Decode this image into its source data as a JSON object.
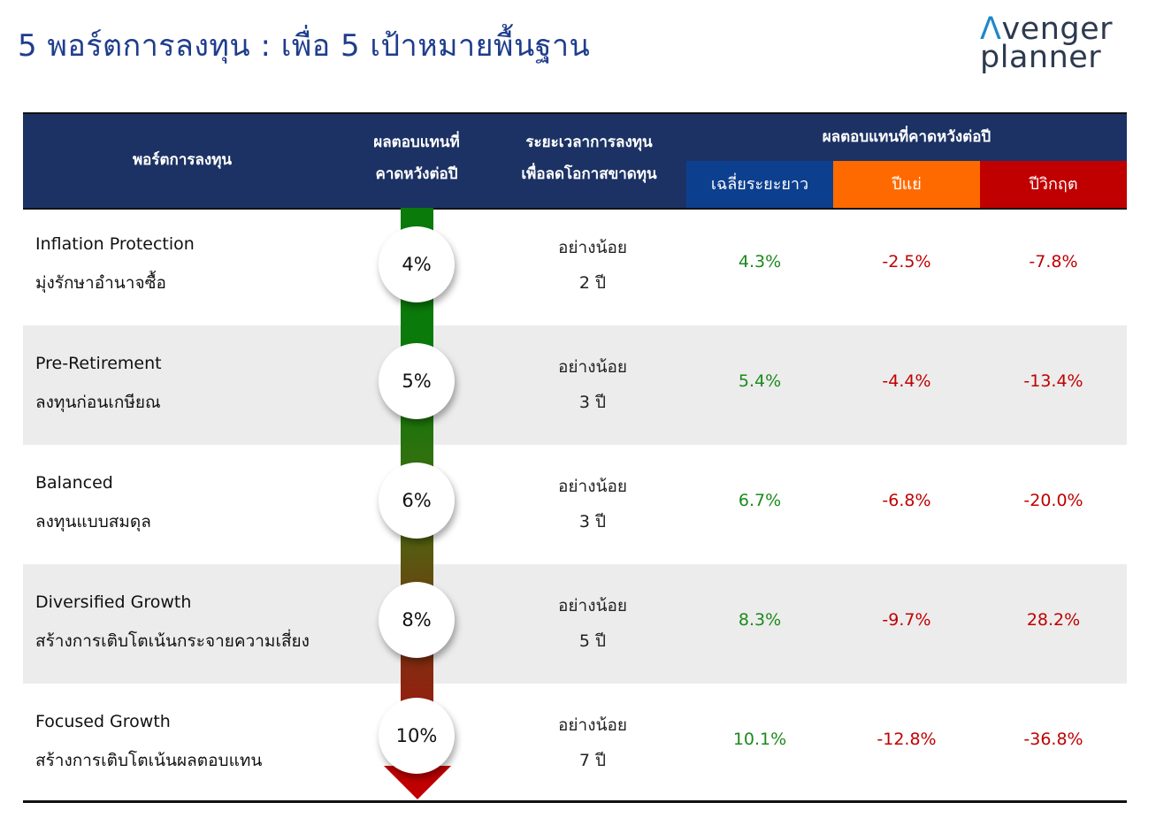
{
  "title": "5 พอร์ตการลงทุน : เพื่อ 5 เป้าหมายพื้นฐาน",
  "logo": {
    "line1": "venger",
    "line1_a": "Λ",
    "line2": "planner"
  },
  "header": {
    "portfolio": "พอร์ตการลงทุน",
    "expected_line1": "ผลตอบแทนที่",
    "expected_line2": "คาดหวังต่อปี",
    "period_line1": "ระยะเวลาการลงทุน",
    "period_line2": "เพื่อลดโอกาสขาดทุน",
    "group": "ผลตอบแทนที่คาดหวังต่อปี",
    "avg": "เฉลี่ยระยะยาว",
    "bad": "ปีแย่",
    "crisis": "ปีวิกฤต"
  },
  "colors": {
    "header_bg": "#1c3264",
    "avg_bg": "#0d3f8f",
    "bad_bg": "#ff6a00",
    "crisis_bg": "#c00000",
    "positive": "#1b8a1b",
    "negative": "#c00000"
  },
  "rows": [
    {
      "name_en": "Inflation Protection",
      "name_th": "มุ่งรักษาอำนาจซื้อ",
      "expected": "4%",
      "period_1": "อย่างน้อย",
      "period_2": "2 ปี",
      "avg": "4.3%",
      "bad": "-2.5%",
      "crisis": "-7.8%"
    },
    {
      "name_en": "Pre-Retirement",
      "name_th": "ลงทุนก่อนเกษียณ",
      "expected": "5%",
      "period_1": "อย่างน้อย",
      "period_2": "3 ปี",
      "avg": "5.4%",
      "bad": "-4.4%",
      "crisis": "-13.4%"
    },
    {
      "name_en": "Balanced",
      "name_th": "ลงทุนแบบสมดุล",
      "expected": "6%",
      "period_1": "อย่างน้อย",
      "period_2": "3 ปี",
      "avg": "6.7%",
      "bad": "-6.8%",
      "crisis": "-20.0%"
    },
    {
      "name_en": "Diversified Growth",
      "name_th": "สร้างการเติบโตเน้นกระจายความเสี่ยง",
      "expected": "8%",
      "period_1": "อย่างน้อย",
      "period_2": "5 ปี",
      "avg": "8.3%",
      "bad": "-9.7%",
      "crisis": "28.2%"
    },
    {
      "name_en": "Focused Growth",
      "name_th": "สร้างการเติบโตเน้นผลตอบแทน",
      "expected": "10%",
      "period_1": "อย่างน้อย",
      "period_2": "7 ปี",
      "avg": "10.1%",
      "bad": "-12.8%",
      "crisis": "-36.8%"
    }
  ]
}
